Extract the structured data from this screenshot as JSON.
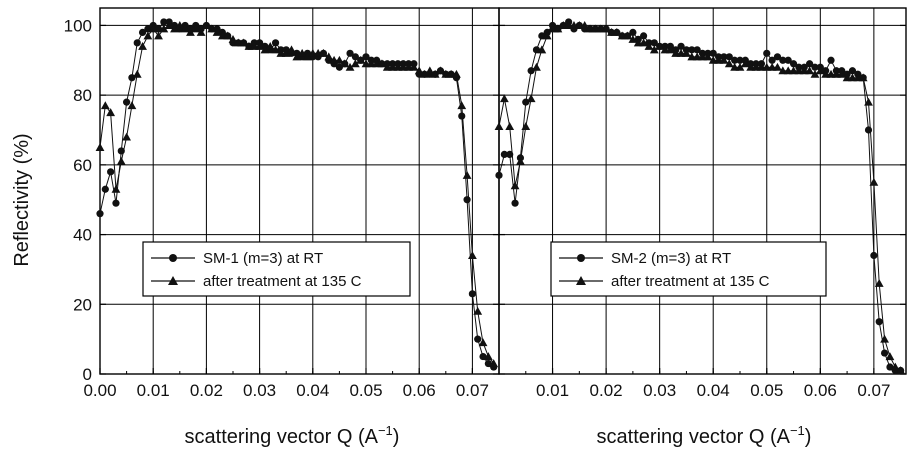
{
  "chart_data": [
    {
      "type": "line",
      "ylabel": "Reflectivity (%)",
      "xlabel": "scattering vector Q (A",
      "xlabel_sup": "−1",
      "xlabel_close": ")",
      "xlim": [
        0.0,
        0.075
      ],
      "ylim": [
        0,
        105
      ],
      "xticks": [
        0.0,
        0.01,
        0.02,
        0.03,
        0.04,
        0.05,
        0.06,
        0.07
      ],
      "xtick_labels": [
        "0.00",
        "0.01",
        "0.02",
        "0.03",
        "0.04",
        "0.05",
        "0.06",
        "0.07"
      ],
      "yticks": [
        0,
        20,
        40,
        60,
        80,
        100
      ],
      "ytick_labels": [
        "0",
        "20",
        "40",
        "60",
        "80",
        "100"
      ],
      "grid": true,
      "legend": "center-left",
      "series": [
        {
          "name": "SM-1 (m=3) at  RT",
          "marker": "circle",
          "x": [
            0.0,
            0.001,
            0.002,
            0.003,
            0.004,
            0.005,
            0.006,
            0.007,
            0.008,
            0.009,
            0.01,
            0.011,
            0.012,
            0.013,
            0.014,
            0.015,
            0.016,
            0.017,
            0.018,
            0.019,
            0.02,
            0.021,
            0.022,
            0.023,
            0.024,
            0.025,
            0.026,
            0.027,
            0.028,
            0.029,
            0.03,
            0.031,
            0.032,
            0.033,
            0.034,
            0.035,
            0.036,
            0.037,
            0.038,
            0.039,
            0.04,
            0.041,
            0.042,
            0.043,
            0.044,
            0.045,
            0.046,
            0.047,
            0.048,
            0.049,
            0.05,
            0.051,
            0.052,
            0.053,
            0.054,
            0.055,
            0.056,
            0.057,
            0.058,
            0.059,
            0.06,
            0.061,
            0.062,
            0.063,
            0.064,
            0.065,
            0.066,
            0.067,
            0.068,
            0.069,
            0.07,
            0.071,
            0.072,
            0.073,
            0.074
          ],
          "y": [
            46,
            53,
            58,
            49,
            64,
            78,
            85,
            95,
            98,
            99,
            100,
            99,
            101,
            101,
            100,
            99,
            100,
            99,
            100,
            99,
            100,
            99,
            99,
            98,
            97,
            95,
            95,
            95,
            94,
            95,
            95,
            94,
            93,
            95,
            93,
            93,
            92,
            92,
            91,
            92,
            91,
            91,
            92,
            90,
            89,
            88,
            89,
            92,
            91,
            90,
            91,
            90,
            90,
            89,
            89,
            89,
            89,
            89,
            89,
            89,
            86,
            86,
            86,
            86,
            87,
            86,
            86,
            85,
            74,
            50,
            23,
            10,
            5,
            3,
            2
          ]
        },
        {
          "name": "after treatment at 135 C",
          "marker": "triangle",
          "x": [
            0.0,
            0.001,
            0.002,
            0.003,
            0.004,
            0.005,
            0.006,
            0.007,
            0.008,
            0.009,
            0.01,
            0.011,
            0.012,
            0.013,
            0.014,
            0.015,
            0.016,
            0.017,
            0.018,
            0.019,
            0.02,
            0.021,
            0.022,
            0.023,
            0.024,
            0.025,
            0.026,
            0.027,
            0.028,
            0.029,
            0.03,
            0.031,
            0.032,
            0.033,
            0.034,
            0.035,
            0.036,
            0.037,
            0.038,
            0.039,
            0.04,
            0.041,
            0.042,
            0.043,
            0.044,
            0.045,
            0.046,
            0.047,
            0.048,
            0.049,
            0.05,
            0.051,
            0.052,
            0.053,
            0.054,
            0.055,
            0.056,
            0.057,
            0.058,
            0.059,
            0.06,
            0.061,
            0.062,
            0.063,
            0.064,
            0.065,
            0.066,
            0.067,
            0.068,
            0.069,
            0.07,
            0.071,
            0.072,
            0.073,
            0.074
          ],
          "y": [
            65,
            77,
            75,
            53,
            61,
            68,
            77,
            86,
            94,
            97,
            99,
            97,
            99,
            100,
            99,
            100,
            99,
            98,
            99,
            98,
            100,
            99,
            98,
            97,
            97,
            96,
            95,
            95,
            94,
            94,
            94,
            93,
            94,
            93,
            92,
            92,
            93,
            91,
            92,
            91,
            92,
            92,
            92,
            91,
            90,
            90,
            89,
            88,
            89,
            90,
            89,
            89,
            89,
            89,
            88,
            88,
            88,
            88,
            88,
            88,
            87,
            86,
            87,
            86,
            87,
            86,
            86,
            86,
            77,
            57,
            34,
            18,
            9,
            5,
            3
          ]
        }
      ]
    },
    {
      "type": "line",
      "xlabel": "scattering vector Q (A",
      "xlabel_sup": "−1",
      "xlabel_close": ")",
      "xlim": [
        0.0,
        0.076
      ],
      "ylim": [
        0,
        105
      ],
      "xticks": [
        0.01,
        0.02,
        0.03,
        0.04,
        0.05,
        0.06,
        0.07
      ],
      "xtick_labels": [
        "0.01",
        "0.02",
        "0.03",
        "0.04",
        "0.05",
        "0.06",
        "0.07"
      ],
      "yticks": [
        0,
        20,
        40,
        60,
        80,
        100
      ],
      "grid": true,
      "legend": "center-right",
      "series": [
        {
          "name": "SM-2 (m=3) at RT",
          "marker": "circle",
          "x": [
            0.0,
            0.001,
            0.002,
            0.003,
            0.004,
            0.005,
            0.006,
            0.007,
            0.008,
            0.009,
            0.01,
            0.011,
            0.012,
            0.013,
            0.014,
            0.015,
            0.016,
            0.017,
            0.018,
            0.019,
            0.02,
            0.021,
            0.022,
            0.023,
            0.024,
            0.025,
            0.026,
            0.027,
            0.028,
            0.029,
            0.03,
            0.031,
            0.032,
            0.033,
            0.034,
            0.035,
            0.036,
            0.037,
            0.038,
            0.039,
            0.04,
            0.041,
            0.042,
            0.043,
            0.044,
            0.045,
            0.046,
            0.047,
            0.048,
            0.049,
            0.05,
            0.051,
            0.052,
            0.053,
            0.054,
            0.055,
            0.056,
            0.057,
            0.058,
            0.059,
            0.06,
            0.061,
            0.062,
            0.063,
            0.064,
            0.065,
            0.066,
            0.067,
            0.068,
            0.069,
            0.07,
            0.071,
            0.072,
            0.073,
            0.074,
            0.075
          ],
          "y": [
            57,
            63,
            63,
            49,
            62,
            78,
            87,
            93,
            97,
            98,
            100,
            99,
            100,
            101,
            99,
            100,
            99,
            99,
            99,
            99,
            99,
            98,
            98,
            97,
            97,
            98,
            96,
            97,
            95,
            95,
            94,
            94,
            94,
            93,
            94,
            93,
            93,
            93,
            92,
            92,
            92,
            91,
            91,
            91,
            90,
            90,
            90,
            89,
            89,
            89,
            92,
            90,
            91,
            90,
            90,
            89,
            88,
            88,
            89,
            88,
            88,
            87,
            90,
            87,
            87,
            86,
            87,
            86,
            85,
            70,
            34,
            15,
            6,
            2,
            1,
            1
          ]
        },
        {
          "name": "after treatment at 135 C",
          "marker": "triangle",
          "x": [
            0.0,
            0.001,
            0.002,
            0.003,
            0.004,
            0.005,
            0.006,
            0.007,
            0.008,
            0.009,
            0.01,
            0.011,
            0.012,
            0.013,
            0.014,
            0.015,
            0.016,
            0.017,
            0.018,
            0.019,
            0.02,
            0.021,
            0.022,
            0.023,
            0.024,
            0.025,
            0.026,
            0.027,
            0.028,
            0.029,
            0.03,
            0.031,
            0.032,
            0.033,
            0.034,
            0.035,
            0.036,
            0.037,
            0.038,
            0.039,
            0.04,
            0.041,
            0.042,
            0.043,
            0.044,
            0.045,
            0.046,
            0.047,
            0.048,
            0.049,
            0.05,
            0.051,
            0.052,
            0.053,
            0.054,
            0.055,
            0.056,
            0.057,
            0.058,
            0.059,
            0.06,
            0.061,
            0.062,
            0.063,
            0.064,
            0.065,
            0.066,
            0.067,
            0.068,
            0.069,
            0.07,
            0.071,
            0.072,
            0.073,
            0.074,
            0.075
          ],
          "y": [
            71,
            79,
            71,
            54,
            61,
            71,
            79,
            88,
            93,
            97,
            99,
            99,
            100,
            100,
            100,
            100,
            100,
            99,
            99,
            99,
            99,
            98,
            98,
            97,
            97,
            96,
            95,
            95,
            94,
            93,
            94,
            93,
            93,
            92,
            92,
            92,
            91,
            91,
            91,
            91,
            90,
            90,
            90,
            89,
            88,
            88,
            89,
            88,
            88,
            88,
            88,
            88,
            88,
            87,
            87,
            87,
            87,
            87,
            87,
            86,
            87,
            86,
            86,
            86,
            86,
            85,
            85,
            85,
            85,
            78,
            55,
            26,
            10,
            5,
            2,
            1
          ]
        }
      ]
    }
  ]
}
